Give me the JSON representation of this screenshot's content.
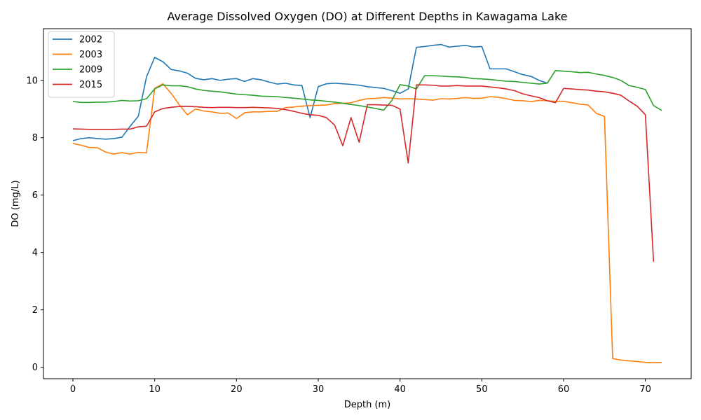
{
  "chart_data": {
    "type": "line",
    "title": "Average Dissolved Oxygen (DO) at Different Depths in Kawagama Lake",
    "xlabel": "Depth (m)",
    "ylabel": "DO (mg/L)",
    "xlim": [
      -3.6,
      75.6
    ],
    "ylim": [
      -0.4,
      11.8
    ],
    "xticks": [
      0,
      10,
      20,
      30,
      40,
      50,
      60,
      70
    ],
    "yticks": [
      0,
      2,
      4,
      6,
      8,
      10
    ],
    "grid": false,
    "legend": "upper-left",
    "series": [
      {
        "name": "2002",
        "color": "#1f77b4",
        "x": [
          0,
          1,
          2,
          3,
          4,
          5,
          6,
          7,
          8,
          9,
          10,
          11,
          12,
          13,
          14,
          15,
          16,
          17,
          18,
          19,
          20,
          21,
          22,
          23,
          24,
          25,
          26,
          27,
          28,
          29,
          30,
          31,
          32,
          33,
          34,
          35,
          36,
          37,
          38,
          39,
          40,
          41,
          42,
          43,
          44,
          45,
          46,
          47,
          48,
          49,
          50,
          51,
          52,
          53,
          54,
          55,
          56,
          57,
          58
        ],
        "y": [
          7.9,
          7.97,
          8.0,
          7.97,
          7.95,
          7.97,
          8.02,
          8.4,
          8.75,
          10.12,
          10.8,
          10.65,
          10.38,
          10.33,
          10.25,
          10.07,
          10.02,
          10.06,
          10.0,
          10.04,
          10.06,
          9.96,
          10.06,
          10.02,
          9.94,
          9.87,
          9.9,
          9.84,
          9.82,
          8.7,
          9.78,
          9.88,
          9.9,
          9.88,
          9.86,
          9.83,
          9.78,
          9.75,
          9.72,
          9.64,
          9.55,
          9.7,
          11.15,
          11.18,
          11.22,
          11.25,
          11.16,
          11.19,
          11.22,
          11.16,
          11.18,
          10.4,
          10.4,
          10.4,
          10.3,
          10.2,
          10.14,
          10.0,
          9.9
        ]
      },
      {
        "name": "2003",
        "color": "#ff7f0e",
        "x": [
          0,
          1,
          2,
          3,
          4,
          5,
          6,
          7,
          8,
          9,
          10,
          11,
          12,
          13,
          14,
          15,
          16,
          17,
          18,
          19,
          20,
          21,
          22,
          23,
          24,
          25,
          26,
          27,
          28,
          29,
          30,
          31,
          32,
          33,
          34,
          35,
          36,
          37,
          38,
          39,
          40,
          41,
          42,
          43,
          44,
          45,
          46,
          47,
          48,
          49,
          50,
          51,
          52,
          53,
          54,
          55,
          56,
          57,
          58,
          59,
          60,
          61,
          62,
          63,
          64,
          65,
          66,
          67,
          68,
          69,
          70,
          71,
          72
        ],
        "y": [
          7.8,
          7.74,
          7.66,
          7.65,
          7.5,
          7.43,
          7.48,
          7.43,
          7.49,
          7.47,
          9.72,
          9.88,
          9.55,
          9.15,
          8.8,
          9.0,
          8.93,
          8.9,
          8.85,
          8.86,
          8.67,
          8.87,
          8.9,
          8.9,
          8.92,
          8.92,
          9.05,
          9.07,
          9.1,
          9.12,
          9.13,
          9.14,
          9.19,
          9.2,
          9.22,
          9.3,
          9.36,
          9.37,
          9.4,
          9.38,
          9.35,
          9.36,
          9.35,
          9.33,
          9.31,
          9.36,
          9.35,
          9.37,
          9.4,
          9.37,
          9.38,
          9.43,
          9.41,
          9.36,
          9.3,
          9.29,
          9.26,
          9.3,
          9.29,
          9.27,
          9.27,
          9.22,
          9.17,
          9.14,
          8.85,
          8.74,
          0.3,
          0.25,
          0.22,
          0.2,
          0.17,
          0.16,
          0.17
        ]
      },
      {
        "name": "2009",
        "color": "#2ca02c",
        "x": [
          0,
          1,
          2,
          3,
          4,
          5,
          6,
          7,
          8,
          9,
          10,
          11,
          12,
          13,
          14,
          15,
          16,
          17,
          18,
          19,
          20,
          21,
          22,
          23,
          24,
          25,
          26,
          27,
          28,
          29,
          30,
          31,
          32,
          33,
          34,
          35,
          36,
          37,
          38,
          39,
          40,
          41,
          42,
          43,
          44,
          45,
          46,
          47,
          48,
          49,
          50,
          51,
          52,
          53,
          54,
          55,
          56,
          57,
          58,
          59,
          60,
          61,
          62,
          63,
          64,
          65,
          66,
          67,
          68,
          69,
          70,
          71,
          72
        ],
        "y": [
          9.26,
          9.23,
          9.23,
          9.24,
          9.24,
          9.26,
          9.3,
          9.28,
          9.29,
          9.36,
          9.7,
          9.84,
          9.81,
          9.81,
          9.78,
          9.7,
          9.65,
          9.62,
          9.6,
          9.56,
          9.52,
          9.5,
          9.48,
          9.45,
          9.44,
          9.43,
          9.4,
          9.38,
          9.35,
          9.32,
          9.3,
          9.27,
          9.24,
          9.2,
          9.16,
          9.12,
          9.07,
          9.02,
          8.96,
          9.3,
          9.85,
          9.8,
          9.7,
          10.16,
          10.16,
          10.15,
          10.13,
          10.12,
          10.1,
          10.06,
          10.05,
          10.03,
          10.0,
          9.97,
          9.96,
          9.93,
          9.9,
          9.87,
          9.9,
          10.34,
          10.32,
          10.3,
          10.27,
          10.28,
          10.22,
          10.17,
          10.1,
          10.0,
          9.82,
          9.76,
          9.68,
          9.12,
          8.95
        ]
      },
      {
        "name": "2015",
        "color": "#d62728",
        "x": [
          0,
          1,
          2,
          3,
          4,
          5,
          6,
          7,
          8,
          9,
          10,
          11,
          12,
          13,
          14,
          15,
          16,
          17,
          18,
          19,
          20,
          21,
          22,
          23,
          24,
          25,
          26,
          27,
          28,
          29,
          30,
          31,
          32,
          33,
          34,
          35,
          36,
          37,
          38,
          39,
          40,
          41,
          42,
          43,
          44,
          45,
          46,
          47,
          48,
          49,
          50,
          51,
          52,
          53,
          54,
          55,
          56,
          57,
          58,
          59,
          60,
          61,
          62,
          63,
          64,
          65,
          66,
          67,
          68,
          69,
          70,
          71
        ],
        "y": [
          8.31,
          8.3,
          8.29,
          8.29,
          8.29,
          8.29,
          8.3,
          8.3,
          8.38,
          8.4,
          8.9,
          9.02,
          9.06,
          9.09,
          9.09,
          9.08,
          9.06,
          9.05,
          9.06,
          9.06,
          9.05,
          9.05,
          9.06,
          9.05,
          9.04,
          9.02,
          8.98,
          8.92,
          8.85,
          8.8,
          8.78,
          8.7,
          8.44,
          7.72,
          8.7,
          7.84,
          9.15,
          9.15,
          9.14,
          9.13,
          9.0,
          7.12,
          9.84,
          9.84,
          9.83,
          9.8,
          9.8,
          9.82,
          9.8,
          9.8,
          9.8,
          9.77,
          9.74,
          9.7,
          9.64,
          9.53,
          9.46,
          9.4,
          9.29,
          9.22,
          9.72,
          9.7,
          9.68,
          9.66,
          9.62,
          9.6,
          9.55,
          9.48,
          9.28,
          9.1,
          8.8,
          3.68
        ]
      }
    ]
  }
}
